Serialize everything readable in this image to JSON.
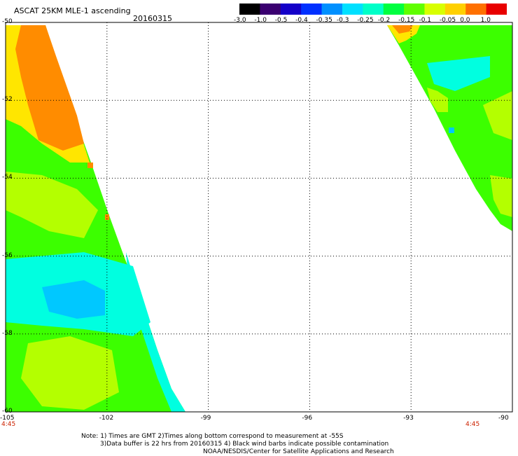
{
  "header": {
    "title": "ASCAT 25KM MLE-1 ascending",
    "date": "20160315"
  },
  "colorbar": {
    "labels": [
      "-3.0",
      "-1.0",
      "-0.5",
      "-0.4",
      "-0.35",
      "-0.3",
      "-0.25",
      "-0.2",
      "-0.15",
      "-0.1",
      "-0.05",
      "0.0",
      "1.0"
    ],
    "colors": [
      "#000000",
      "#3a0070",
      "#1400c8",
      "#0030ff",
      "#0090ff",
      "#00e0ff",
      "#00ffc8",
      "#00ff40",
      "#60ff00",
      "#d8ff00",
      "#ffd000",
      "#ff7000",
      "#e80000"
    ]
  },
  "map": {
    "lat_labels": [
      "-50",
      "-52",
      "-54",
      "-56",
      "-58",
      "-60"
    ],
    "lon_labels": [
      "-105",
      "-102",
      "-99",
      "-96",
      "-93",
      "-90"
    ],
    "time_left": "4:45",
    "time_right": "4:45",
    "palette": {
      "orange": "#ff8c00",
      "yellow": "#ffe600",
      "yellowgreen": "#b4ff00",
      "green": "#3cff00",
      "cyan": "#00ffe0",
      "skyblue": "#00c8ff",
      "white": "#ffffff"
    }
  },
  "notes": {
    "line1": "Note: 1) Times are GMT 2)Times along bottom correspond to measurement at -55S",
    "line2": "3)Data buffer is 22 hrs from 20160315 4) Black wind barbs indicate possible contamination",
    "line3": "NOAA/NESDIS/Center for Satellite Applications and Research"
  }
}
